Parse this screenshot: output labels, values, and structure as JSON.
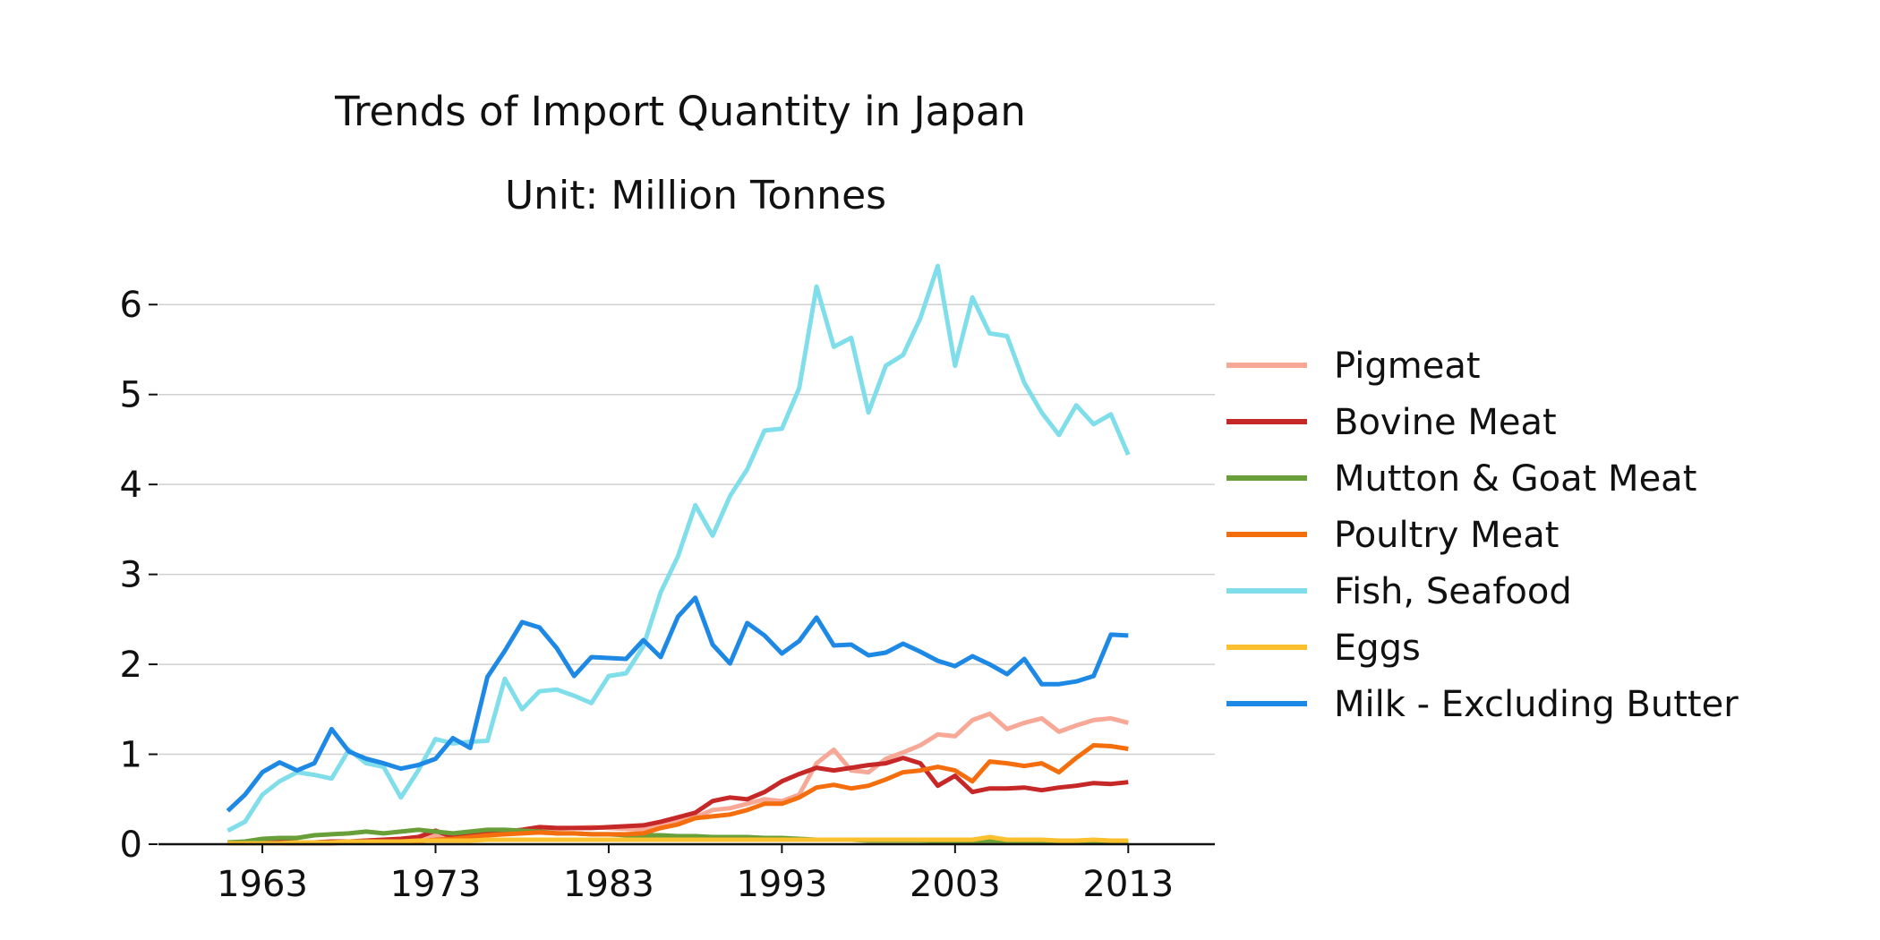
{
  "chart_data": {
    "type": "line",
    "title": "Trends of Import Quantity in Japan",
    "subtitle": "Unit: Million Tonnes",
    "xlabel": "",
    "ylabel": "",
    "xlim": [
      1957,
      2018
    ],
    "ylim": [
      0,
      6.5
    ],
    "x_ticks": [
      1963,
      1973,
      1983,
      1993,
      2003,
      2013
    ],
    "y_ticks": [
      0,
      1,
      2,
      3,
      4,
      5,
      6
    ],
    "grid": "horizontal",
    "legend_position": "right",
    "x": [
      1961,
      1962,
      1963,
      1964,
      1965,
      1966,
      1967,
      1968,
      1969,
      1970,
      1971,
      1972,
      1973,
      1974,
      1975,
      1976,
      1977,
      1978,
      1979,
      1980,
      1981,
      1982,
      1983,
      1984,
      1985,
      1986,
      1987,
      1988,
      1989,
      1990,
      1991,
      1992,
      1993,
      1994,
      1995,
      1996,
      1997,
      1998,
      1999,
      2000,
      2001,
      2002,
      2003,
      2004,
      2005,
      2006,
      2007,
      2008,
      2009,
      2010,
      2011,
      2012,
      2013
    ],
    "series": [
      {
        "name": "Pigmeat",
        "color": "#f7a897",
        "values": [
          0.01,
          0.01,
          0.01,
          0.02,
          0.02,
          0.02,
          0.03,
          0.03,
          0.04,
          0.05,
          0.06,
          0.08,
          0.1,
          0.09,
          0.12,
          0.15,
          0.14,
          0.15,
          0.18,
          0.17,
          0.18,
          0.19,
          0.18,
          0.17,
          0.16,
          0.2,
          0.25,
          0.3,
          0.38,
          0.4,
          0.45,
          0.5,
          0.48,
          0.55,
          0.9,
          1.05,
          0.82,
          0.8,
          0.95,
          1.02,
          1.1,
          1.22,
          1.2,
          1.38,
          1.45,
          1.28,
          1.35,
          1.4,
          1.25,
          1.32,
          1.38,
          1.4,
          1.35
        ]
      },
      {
        "name": "Bovine Meat",
        "color": "#c62828",
        "values": [
          0.01,
          0.01,
          0.02,
          0.02,
          0.02,
          0.02,
          0.03,
          0.03,
          0.04,
          0.05,
          0.06,
          0.08,
          0.15,
          0.08,
          0.1,
          0.12,
          0.14,
          0.16,
          0.19,
          0.18,
          0.18,
          0.18,
          0.19,
          0.2,
          0.21,
          0.25,
          0.3,
          0.35,
          0.48,
          0.52,
          0.5,
          0.58,
          0.7,
          0.78,
          0.85,
          0.82,
          0.85,
          0.88,
          0.9,
          0.96,
          0.9,
          0.65,
          0.76,
          0.58,
          0.62,
          0.62,
          0.63,
          0.6,
          0.63,
          0.65,
          0.68,
          0.67,
          0.69
        ]
      },
      {
        "name": "Mutton & Goat Meat",
        "color": "#689f38",
        "values": [
          0.02,
          0.03,
          0.06,
          0.07,
          0.07,
          0.1,
          0.11,
          0.12,
          0.14,
          0.12,
          0.14,
          0.16,
          0.14,
          0.12,
          0.14,
          0.16,
          0.16,
          0.15,
          0.14,
          0.12,
          0.12,
          0.11,
          0.11,
          0.1,
          0.1,
          0.1,
          0.09,
          0.09,
          0.08,
          0.08,
          0.08,
          0.07,
          0.07,
          0.06,
          0.05,
          0.05,
          0.05,
          0.04,
          0.04,
          0.04,
          0.04,
          0.03,
          0.03,
          0.03,
          0.03,
          0.02,
          0.02,
          0.02,
          0.02,
          0.02,
          0.02,
          0.02,
          0.02
        ]
      },
      {
        "name": "Poultry Meat",
        "color": "#f46e0e",
        "values": [
          0.01,
          0.01,
          0.01,
          0.01,
          0.01,
          0.01,
          0.01,
          0.02,
          0.02,
          0.02,
          0.03,
          0.03,
          0.05,
          0.06,
          0.08,
          0.1,
          0.11,
          0.12,
          0.13,
          0.12,
          0.12,
          0.11,
          0.11,
          0.11,
          0.12,
          0.18,
          0.22,
          0.29,
          0.31,
          0.33,
          0.38,
          0.45,
          0.45,
          0.52,
          0.63,
          0.66,
          0.62,
          0.65,
          0.72,
          0.8,
          0.82,
          0.86,
          0.82,
          0.7,
          0.92,
          0.9,
          0.87,
          0.9,
          0.8,
          0.96,
          1.1,
          1.09,
          1.06
        ]
      },
      {
        "name": "Fish, Seafood",
        "color": "#80deea",
        "values": [
          0.15,
          0.25,
          0.55,
          0.7,
          0.8,
          0.77,
          0.73,
          1.05,
          0.9,
          0.86,
          0.52,
          0.82,
          1.17,
          1.12,
          1.14,
          1.15,
          1.84,
          1.5,
          1.7,
          1.72,
          1.65,
          1.57,
          1.87,
          1.9,
          2.2,
          2.8,
          3.2,
          3.77,
          3.43,
          3.87,
          4.17,
          4.6,
          4.62,
          5.07,
          6.2,
          5.53,
          5.63,
          4.8,
          5.32,
          5.44,
          5.85,
          6.43,
          5.32,
          6.08,
          5.68,
          5.65,
          5.13,
          4.8,
          4.55,
          4.88,
          4.67,
          4.78,
          4.33
        ]
      },
      {
        "name": "Eggs",
        "color": "#fbc02d",
        "values": [
          0.01,
          0.01,
          0.01,
          0.01,
          0.02,
          0.02,
          0.02,
          0.03,
          0.03,
          0.03,
          0.03,
          0.04,
          0.04,
          0.04,
          0.04,
          0.05,
          0.05,
          0.05,
          0.05,
          0.05,
          0.05,
          0.05,
          0.05,
          0.05,
          0.05,
          0.05,
          0.05,
          0.05,
          0.05,
          0.05,
          0.05,
          0.05,
          0.05,
          0.05,
          0.05,
          0.05,
          0.05,
          0.05,
          0.05,
          0.05,
          0.05,
          0.05,
          0.05,
          0.05,
          0.08,
          0.05,
          0.05,
          0.05,
          0.04,
          0.04,
          0.05,
          0.04,
          0.04
        ]
      },
      {
        "name": "Milk - Excluding Butter",
        "color": "#1e88e5",
        "values": [
          0.37,
          0.55,
          0.8,
          0.91,
          0.82,
          0.9,
          1.28,
          1.03,
          0.95,
          0.9,
          0.84,
          0.88,
          0.95,
          1.18,
          1.07,
          1.86,
          2.15,
          2.47,
          2.41,
          2.18,
          1.87,
          2.08,
          2.07,
          2.06,
          2.27,
          2.08,
          2.53,
          2.74,
          2.22,
          2.01,
          2.46,
          2.32,
          2.12,
          2.26,
          2.52,
          2.21,
          2.22,
          2.1,
          2.13,
          2.23,
          2.14,
          2.04,
          1.98,
          2.09,
          2.0,
          1.89,
          2.06,
          1.78,
          1.78,
          1.81,
          1.87,
          2.33,
          2.32
        ]
      }
    ]
  }
}
